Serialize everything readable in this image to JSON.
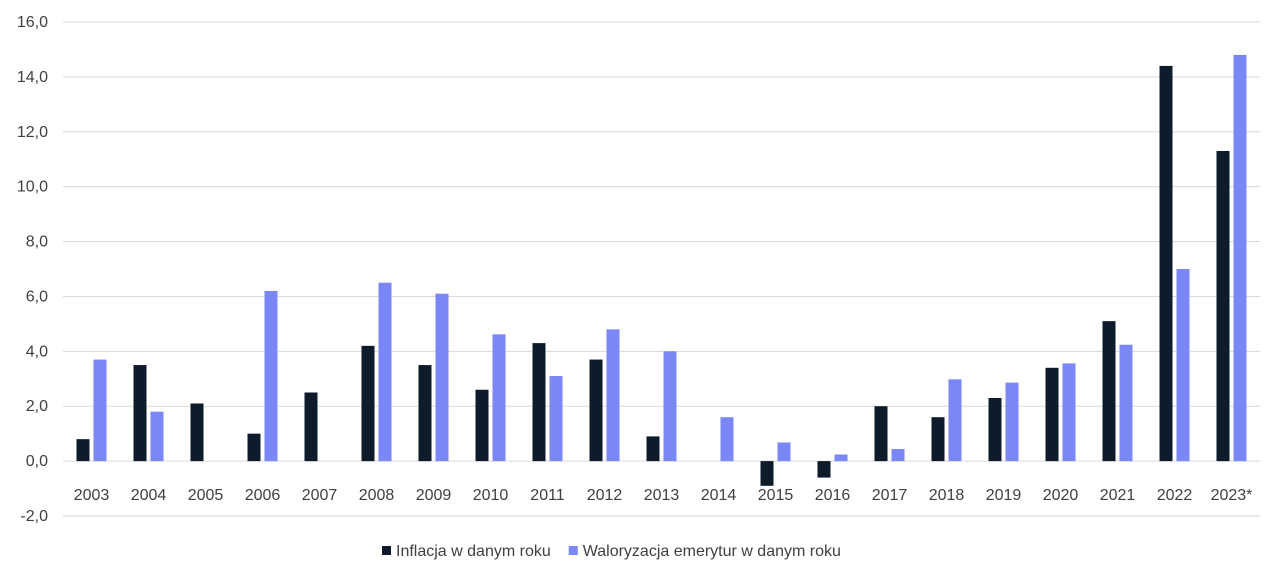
{
  "chart_data": {
    "type": "bar",
    "title": "",
    "xlabel": "",
    "ylabel": "",
    "ylim": [
      -2,
      16
    ],
    "y_ticks": [
      "-2,0",
      "0,0",
      "2,0",
      "4,0",
      "6,0",
      "8,0",
      "10,0",
      "12,0",
      "14,0",
      "16,0"
    ],
    "y_tick_values": [
      -2,
      0,
      2,
      4,
      6,
      8,
      10,
      12,
      14,
      16
    ],
    "categories": [
      "2003",
      "2004",
      "2005",
      "2006",
      "2007",
      "2008",
      "2009",
      "2010",
      "2011",
      "2012",
      "2013",
      "2014",
      "2015",
      "2016",
      "2017",
      "2018",
      "2019",
      "2020",
      "2021",
      "2022",
      "2023*"
    ],
    "series": [
      {
        "name": "Inflacja w danym roku",
        "color": "#0d1b2a",
        "values": [
          0.8,
          3.5,
          2.1,
          1.0,
          2.5,
          4.2,
          3.5,
          2.6,
          4.3,
          3.7,
          0.9,
          0.0,
          -0.9,
          -0.6,
          2.0,
          1.6,
          2.3,
          3.4,
          5.1,
          14.4,
          11.3
        ]
      },
      {
        "name": "Waloryzacja emerytur w danym roku",
        "color": "#7b86f7",
        "values": [
          3.7,
          1.8,
          0.0,
          6.2,
          0.0,
          6.5,
          6.1,
          4.62,
          3.1,
          4.8,
          4.0,
          1.6,
          0.68,
          0.24,
          0.44,
          2.98,
          2.86,
          3.56,
          4.24,
          7.0,
          14.8
        ]
      }
    ],
    "legend_position": "bottom-center",
    "grid": true
  }
}
